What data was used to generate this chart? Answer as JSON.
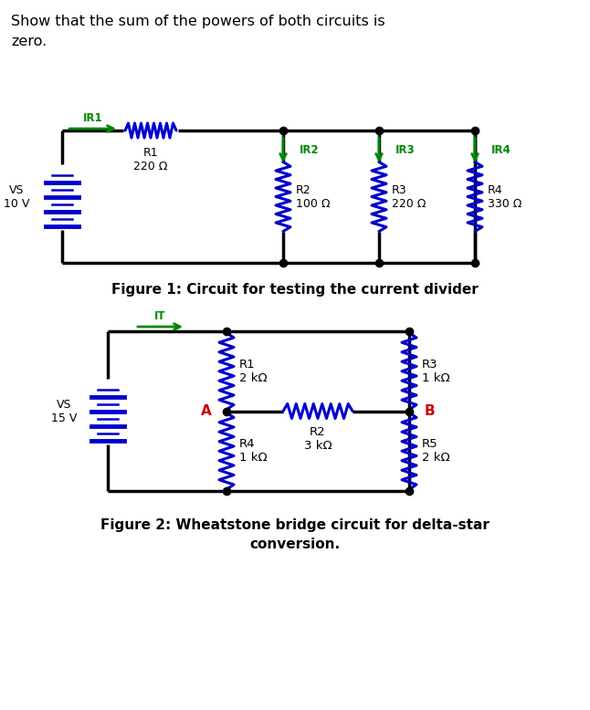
{
  "title_text": "Show that the sum of the powers of both circuits is\nzero.",
  "fig1_caption": "Figure 1: Circuit for testing the current divider",
  "fig2_caption": "Figure 2: Wheatstone bridge circuit for delta-star\nconversion.",
  "circuit_color": "#0000CC",
  "green_color": "#008800",
  "red_color": "#CC0000",
  "black_color": "#000000",
  "gray_color": "#555555",
  "bg_color": "#FFFFFF",
  "fig1": {
    "vs_label": "VS\n10 V",
    "r1_label": "R1\n220 Ω",
    "r2_label": "R2\n100 Ω",
    "r3_label": "R3\n220 Ω",
    "r4_label": "R4\n330 Ω",
    "ir1_label": "IR1",
    "ir2_label": "IR2",
    "ir3_label": "IR3",
    "ir4_label": "IR4"
  },
  "fig2": {
    "vs_label": "VS\n15 V",
    "r1_label": "R1\n2 kΩ",
    "r2_label": "R2\n3 kΩ",
    "r3_label": "R3\n1 kΩ",
    "r4_label": "R4\n1 kΩ",
    "r5_label": "R5\n2 kΩ",
    "it_label": "IT",
    "a_label": "A",
    "b_label": "B"
  }
}
